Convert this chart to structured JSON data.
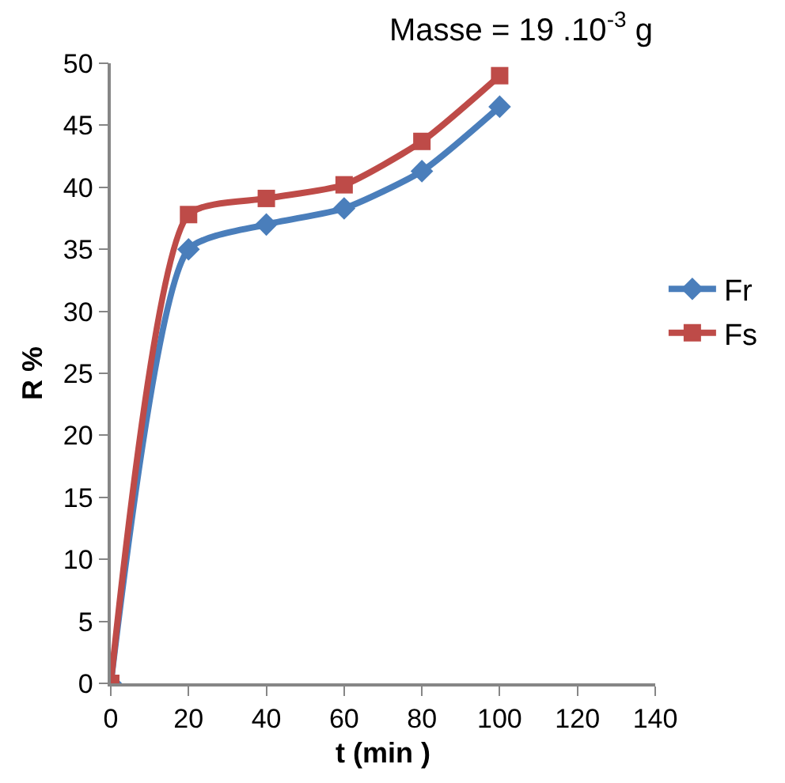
{
  "chart_data": {
    "type": "line",
    "xlabel": "t (min )",
    "ylabel": "R %",
    "annotations": [
      "Masse = 19 .10$^{-3}$ g"
    ],
    "x": [
      0,
      20,
      40,
      60,
      80,
      100
    ],
    "series": [
      {
        "name": "Fr",
        "color": "#4a7ebb",
        "marker": "diamond",
        "values": [
          0,
          35,
          37,
          38.3,
          41.3,
          46.5
        ]
      },
      {
        "name": "Fs",
        "color": "#be4b48",
        "marker": "square",
        "values": [
          0,
          37.8,
          39.1,
          40.2,
          43.7,
          49
        ]
      }
    ],
    "xlim": [
      0,
      140
    ],
    "xticks": [
      0,
      20,
      40,
      60,
      80,
      100,
      120,
      140
    ],
    "ylim": [
      0,
      50
    ],
    "yticks": [
      0,
      5,
      10,
      15,
      20,
      25,
      30,
      35,
      40,
      45,
      50
    ],
    "legend": "right",
    "line_style": "solid"
  }
}
